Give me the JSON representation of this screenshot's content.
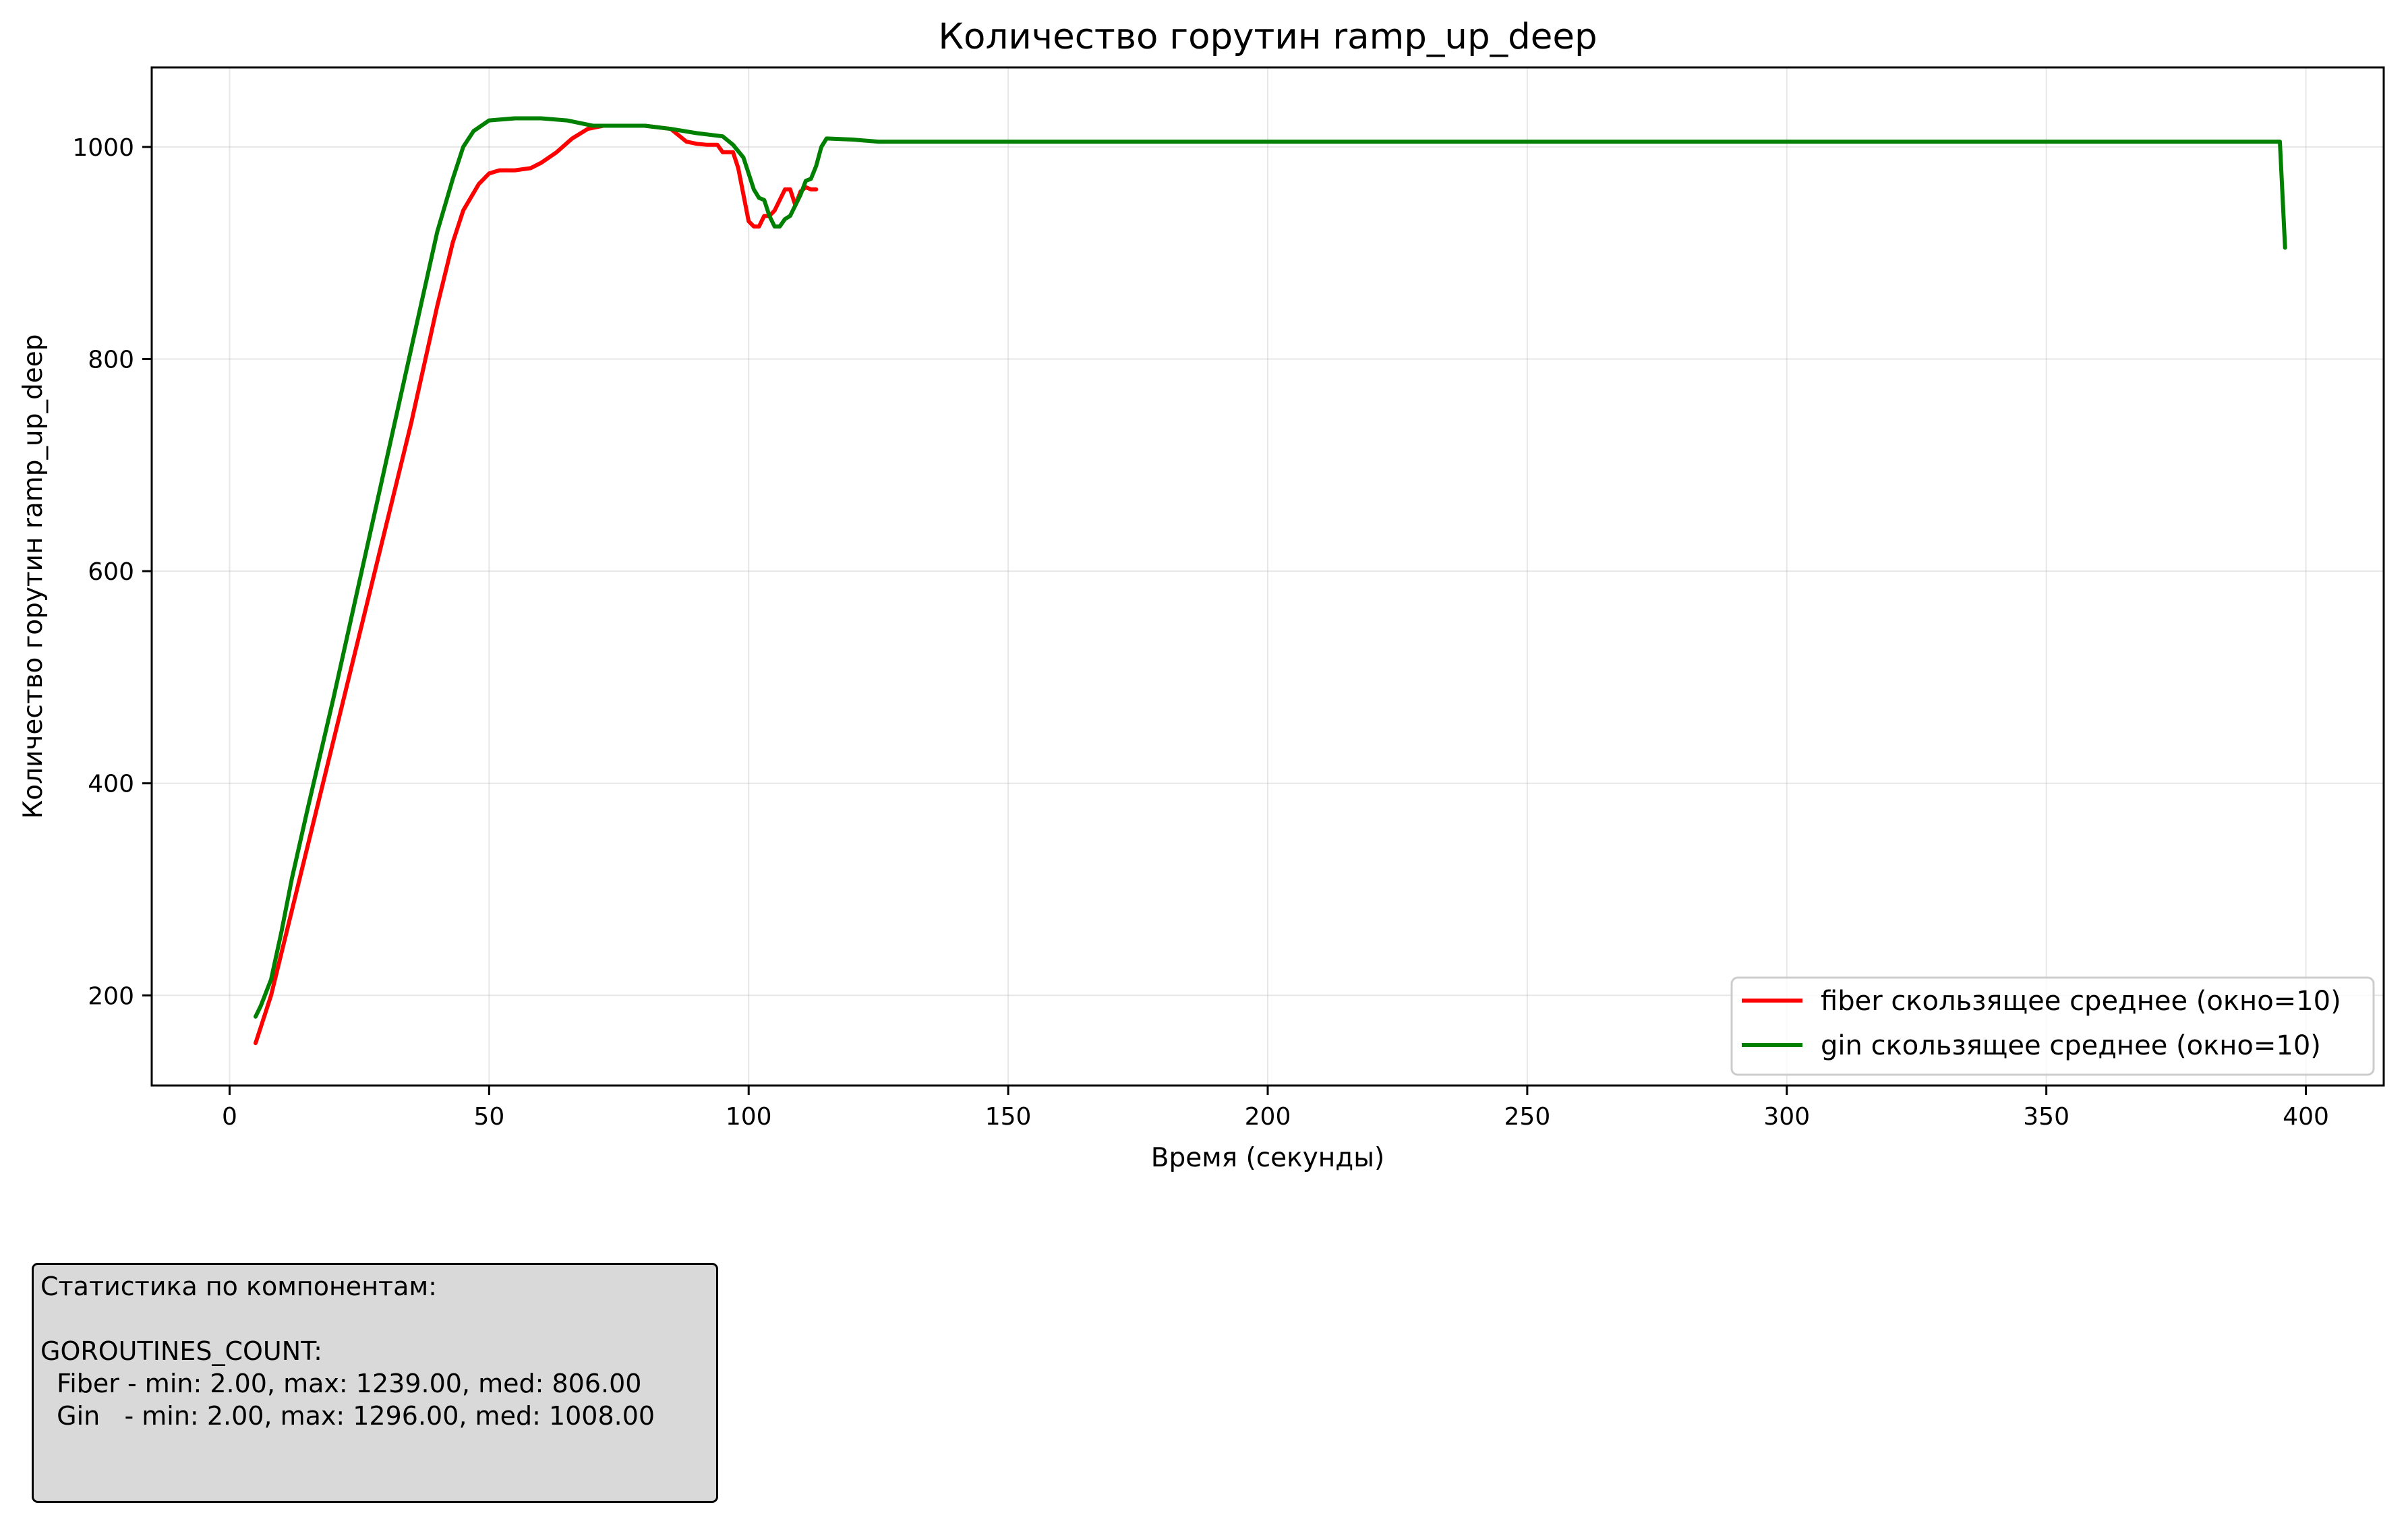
{
  "chart_data": {
    "type": "line",
    "title": "Количество горутин ramp_up_deep",
    "xlabel": "Время (секунды)",
    "ylabel": "Количество горутин ramp_up_deep",
    "xlim": [
      -15,
      415
    ],
    "ylim": [
      115,
      1075
    ],
    "x_ticks": [
      0,
      50,
      100,
      150,
      200,
      250,
      300,
      350,
      400
    ],
    "y_ticks": [
      200,
      400,
      600,
      800,
      1000
    ],
    "grid": true,
    "legend_position": "lower-right",
    "series": [
      {
        "name": "fiber скользящее среднее (окно=10)",
        "color": "#ff0000",
        "points": [
          [
            5,
            155
          ],
          [
            6,
            170
          ],
          [
            8,
            200
          ],
          [
            10,
            240
          ],
          [
            12,
            280
          ],
          [
            15,
            340
          ],
          [
            20,
            440
          ],
          [
            25,
            540
          ],
          [
            30,
            640
          ],
          [
            35,
            740
          ],
          [
            40,
            850
          ],
          [
            43,
            910
          ],
          [
            45,
            940
          ],
          [
            48,
            965
          ],
          [
            50,
            975
          ],
          [
            52,
            978
          ],
          [
            55,
            978
          ],
          [
            58,
            980
          ],
          [
            60,
            985
          ],
          [
            63,
            995
          ],
          [
            66,
            1008
          ],
          [
            69,
            1017
          ],
          [
            72,
            1020
          ],
          [
            80,
            1020
          ],
          [
            85,
            1017
          ],
          [
            88,
            1005
          ],
          [
            90,
            1003
          ],
          [
            92,
            1002
          ],
          [
            94,
            1002
          ],
          [
            95,
            995
          ],
          [
            97,
            995
          ],
          [
            98,
            980
          ],
          [
            99,
            955
          ],
          [
            100,
            930
          ],
          [
            101,
            925
          ],
          [
            102,
            925
          ],
          [
            103,
            935
          ],
          [
            104,
            935
          ],
          [
            105,
            940
          ],
          [
            106,
            950
          ],
          [
            107,
            960
          ],
          [
            108,
            960
          ],
          [
            109,
            945
          ],
          [
            110,
            958
          ],
          [
            111,
            962
          ],
          [
            112,
            960
          ],
          [
            113,
            960
          ]
        ]
      },
      {
        "name": "gin скользящее среднее (окно=10)",
        "color": "#008000",
        "points": [
          [
            5,
            180
          ],
          [
            6,
            190
          ],
          [
            8,
            215
          ],
          [
            10,
            260
          ],
          [
            12,
            310
          ],
          [
            15,
            375
          ],
          [
            20,
            480
          ],
          [
            25,
            590
          ],
          [
            30,
            700
          ],
          [
            35,
            810
          ],
          [
            40,
            920
          ],
          [
            43,
            970
          ],
          [
            45,
            1000
          ],
          [
            47,
            1015
          ],
          [
            50,
            1025
          ],
          [
            55,
            1027
          ],
          [
            60,
            1027
          ],
          [
            65,
            1025
          ],
          [
            70,
            1020
          ],
          [
            80,
            1020
          ],
          [
            85,
            1017
          ],
          [
            90,
            1013
          ],
          [
            95,
            1010
          ],
          [
            97,
            1002
          ],
          [
            99,
            990
          ],
          [
            100,
            975
          ],
          [
            101,
            960
          ],
          [
            102,
            952
          ],
          [
            103,
            950
          ],
          [
            104,
            935
          ],
          [
            105,
            925
          ],
          [
            106,
            925
          ],
          [
            107,
            932
          ],
          [
            108,
            935
          ],
          [
            109,
            945
          ],
          [
            110,
            955
          ],
          [
            111,
            968
          ],
          [
            112,
            970
          ],
          [
            113,
            982
          ],
          [
            114,
            1000
          ],
          [
            115,
            1008
          ],
          [
            120,
            1007
          ],
          [
            125,
            1005
          ],
          [
            130,
            1005
          ],
          [
            200,
            1005
          ],
          [
            300,
            1005
          ],
          [
            395,
            1005
          ],
          [
            396,
            905
          ]
        ]
      }
    ]
  },
  "stats": {
    "heading": "Статистика по компонентам:",
    "metric": "GOROUTINES_COUNT:",
    "fiber_line": "  Fiber - min: 2.00, max: 1239.00, med: 806.00",
    "gin_line": "  Gin   - min: 2.00, max: 1296.00, med: 1008.00"
  }
}
